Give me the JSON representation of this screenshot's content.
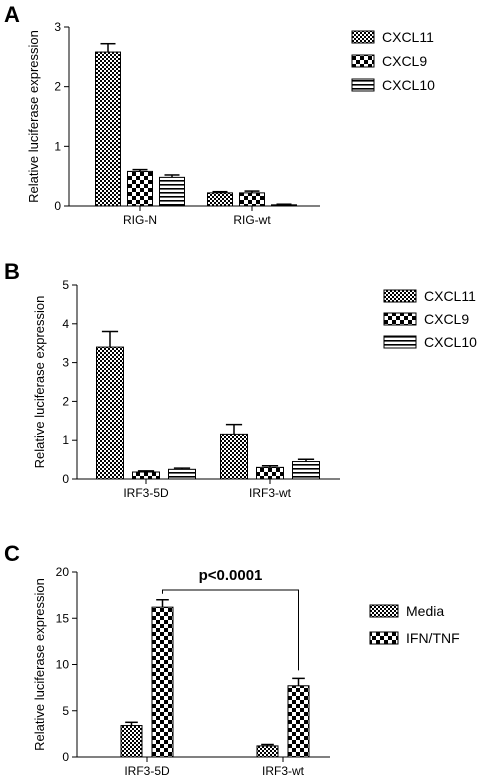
{
  "chart_data": [
    {
      "panel": "A",
      "type": "bar",
      "ylabel": "Relative luciferase expression",
      "ylim": [
        0,
        3
      ],
      "yticks": [
        0,
        1,
        2,
        3
      ],
      "categories": [
        "RIG-N",
        "RIG-wt"
      ],
      "series": [
        {
          "name": "CXCL11",
          "pattern": "checker-dense",
          "values": [
            2.58,
            0.22
          ],
          "errors": [
            0.14,
            0.02
          ]
        },
        {
          "name": "CXCL9",
          "pattern": "checker-large",
          "values": [
            0.58,
            0.22
          ],
          "errors": [
            0.03,
            0.03
          ]
        },
        {
          "name": "CXCL10",
          "pattern": "horizontal-lines",
          "values": [
            0.48,
            0.02
          ],
          "errors": [
            0.04,
            0.01
          ]
        }
      ],
      "legend_position": "top-right",
      "grid": false
    },
    {
      "panel": "B",
      "type": "bar",
      "ylabel": "Relative luciferase expression",
      "ylim": [
        0,
        5
      ],
      "yticks": [
        0,
        1,
        2,
        3,
        4,
        5
      ],
      "categories": [
        "IRF3-5D",
        "IRF3-wt"
      ],
      "series": [
        {
          "name": "CXCL11",
          "pattern": "checker-dense",
          "values": [
            3.4,
            1.15
          ],
          "errors": [
            0.4,
            0.25
          ]
        },
        {
          "name": "CXCL9",
          "pattern": "checker-large",
          "values": [
            0.18,
            0.3
          ],
          "errors": [
            0.03,
            0.04
          ]
        },
        {
          "name": "CXCL10",
          "pattern": "horizontal-lines",
          "values": [
            0.25,
            0.45
          ],
          "errors": [
            0.03,
            0.06
          ]
        }
      ],
      "legend_position": "top-right",
      "grid": false
    },
    {
      "panel": "C",
      "type": "bar",
      "ylabel": "Relative luciferase expression",
      "ylim": [
        0,
        20
      ],
      "yticks": [
        0,
        5,
        10,
        15,
        20
      ],
      "categories": [
        "IRF3-5D",
        "IRF3-wt"
      ],
      "series": [
        {
          "name": "Media",
          "pattern": "checker-dense",
          "values": [
            3.4,
            1.2
          ],
          "errors": [
            0.35,
            0.15
          ]
        },
        {
          "name": "IFN/TNF",
          "pattern": "checker-large",
          "values": [
            16.2,
            7.7
          ],
          "errors": [
            0.8,
            0.8
          ]
        }
      ],
      "annotation": "p<0.0001",
      "legend_position": "top-right",
      "grid": false
    }
  ]
}
